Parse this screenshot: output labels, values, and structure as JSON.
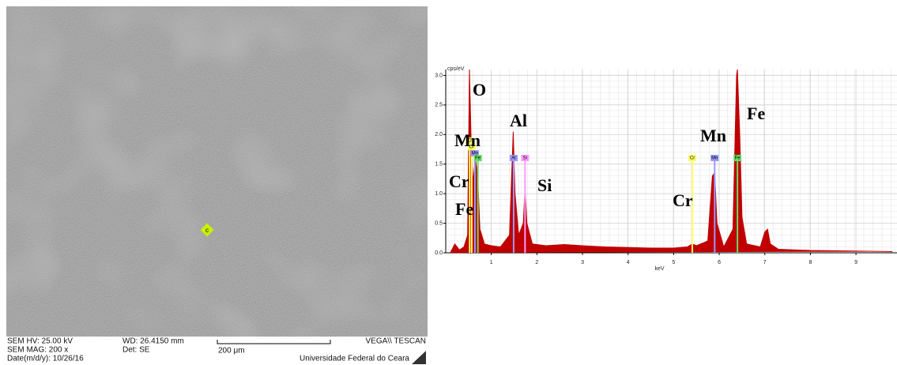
{
  "sem_image": {
    "hv": "SEM HV: 25.00 kV",
    "wd": "WD: 26.4150 mm",
    "brand": "VEGA\\\\ TESCAN",
    "mag": "SEM MAG: 200 x",
    "det": "Det: SE",
    "scale_bar": "200 μm",
    "date": "Date(m/d/y): 10/26/16",
    "institution": "Universidade Federal do Ceara",
    "point_label": "c"
  },
  "chart_data": {
    "type": "area",
    "y_label": "cps/eV",
    "x_label": "keV",
    "xlim": [
      0,
      9.9
    ],
    "ylim": [
      0,
      3.1
    ],
    "xticks": [
      1,
      2,
      3,
      4,
      5,
      6,
      7,
      8,
      9
    ],
    "yticks": [
      {
        "value": 0,
        "label": "0.0"
      },
      {
        "value": 0.5,
        "label": "0.5"
      },
      {
        "value": 1,
        "label": "1.0"
      },
      {
        "value": 1.5,
        "label": "1.5"
      },
      {
        "value": 2,
        "label": "2.0"
      },
      {
        "value": 2.5,
        "label": "2.5"
      },
      {
        "value": 3,
        "label": "3.0"
      }
    ],
    "grid": true,
    "x": [
      0.1,
      0.2,
      0.3,
      0.4,
      0.48,
      0.52,
      0.56,
      0.6,
      0.65,
      0.7,
      0.75,
      0.85,
      1.0,
      1.2,
      1.4,
      1.48,
      1.52,
      1.6,
      1.7,
      1.74,
      1.78,
      1.9,
      2.2,
      2.6,
      3.0,
      3.5,
      4.0,
      4.5,
      5.0,
      5.3,
      5.41,
      5.5,
      5.75,
      5.85,
      5.9,
      5.95,
      6.1,
      6.3,
      6.38,
      6.4,
      6.45,
      6.5,
      6.6,
      6.9,
      7.0,
      7.06,
      7.12,
      7.3,
      8.0,
      9.0,
      9.8
    ],
    "series": [
      {
        "color": "#c00000",
        "values": [
          0.0,
          0.15,
          0.05,
          0.1,
          0.3,
          3.1,
          1.8,
          1.2,
          1.6,
          1.3,
          0.4,
          0.15,
          0.12,
          0.1,
          0.3,
          2.05,
          1.0,
          0.3,
          0.5,
          1.1,
          0.5,
          0.15,
          0.12,
          0.14,
          0.12,
          0.1,
          0.09,
          0.08,
          0.08,
          0.1,
          0.15,
          0.12,
          0.2,
          1.3,
          1.35,
          0.5,
          0.1,
          0.4,
          3.0,
          3.1,
          2.0,
          0.6,
          0.15,
          0.1,
          0.35,
          0.4,
          0.15,
          0.06,
          0.04,
          0.03,
          0.02
        ]
      }
    ],
    "markers": [
      {
        "label": "O",
        "x": 0.525,
        "height": 1.95,
        "color": "#ffff66"
      },
      {
        "label": "Cr",
        "x": 0.57,
        "height": 1.85,
        "color": "#ffff66"
      },
      {
        "label": "Mn",
        "x": 0.64,
        "height": 1.7,
        "color": "#9999ff"
      },
      {
        "label": "Fe",
        "x": 0.705,
        "height": 1.6,
        "color": "#66dd66"
      },
      {
        "label": "Al",
        "x": 1.49,
        "height": 1.6,
        "color": "#9999ff"
      },
      {
        "label": "Si",
        "x": 1.74,
        "height": 1.6,
        "color": "#ff99ff"
      },
      {
        "label": "Cr",
        "x": 5.41,
        "height": 1.6,
        "color": "#ffff66"
      },
      {
        "label": "Mn",
        "x": 5.9,
        "height": 1.6,
        "color": "#9999ff"
      },
      {
        "label": "Fe",
        "x": 6.4,
        "height": 1.6,
        "color": "#66dd66"
      }
    ],
    "annotations": [
      "O",
      "Mn",
      "Al",
      "Cr",
      "Fe",
      "Si",
      "Cr",
      "Mn",
      "Fe"
    ]
  }
}
